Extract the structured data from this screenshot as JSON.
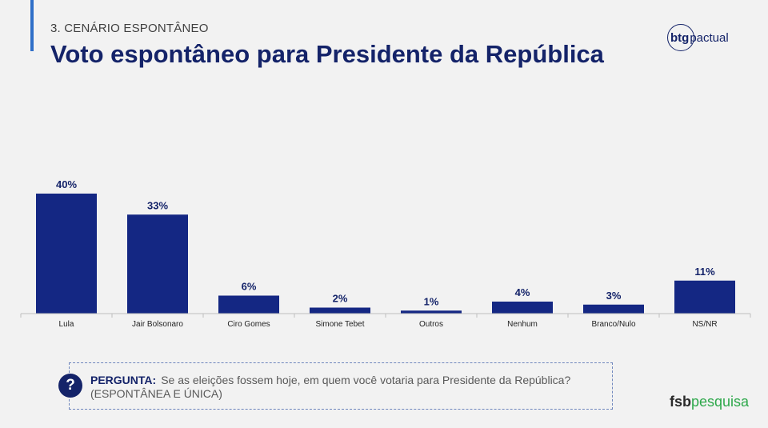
{
  "header": {
    "section": "3. CENÁRIO ESPONTÂNEO",
    "title": "Voto espontâneo para Presidente da República",
    "logo_btg_part1": "btg",
    "logo_btg_part2": "pactual"
  },
  "chart_data": {
    "type": "bar",
    "categories": [
      "Lula",
      "Jair Bolsonaro",
      "Ciro Gomes",
      "Simone Tebet",
      "Outros",
      "Nenhum",
      "Branco/Nulo",
      "NS/NR"
    ],
    "values": [
      40,
      33,
      6,
      2,
      1,
      4,
      3,
      11
    ],
    "labels": [
      "40%",
      "33%",
      "6%",
      "2%",
      "1%",
      "4%",
      "3%",
      "11%"
    ],
    "ylim": [
      0,
      40
    ],
    "grid": false,
    "bar_color": "#142783"
  },
  "question": {
    "icon": "?",
    "label": "PERGUNTA:",
    "text": "Se as eleições fossem hoje, em quem você votaria para Presidente da República?",
    "note": "(ESPONTÂNEA E ÚNICA)"
  },
  "footer": {
    "logo_part1": "fsb",
    "logo_part2": "pesquisa"
  },
  "colors": {
    "title": "#142369",
    "accent": "#2f6fc8",
    "bars": "#142783",
    "fsb_green": "#2ea84b"
  }
}
